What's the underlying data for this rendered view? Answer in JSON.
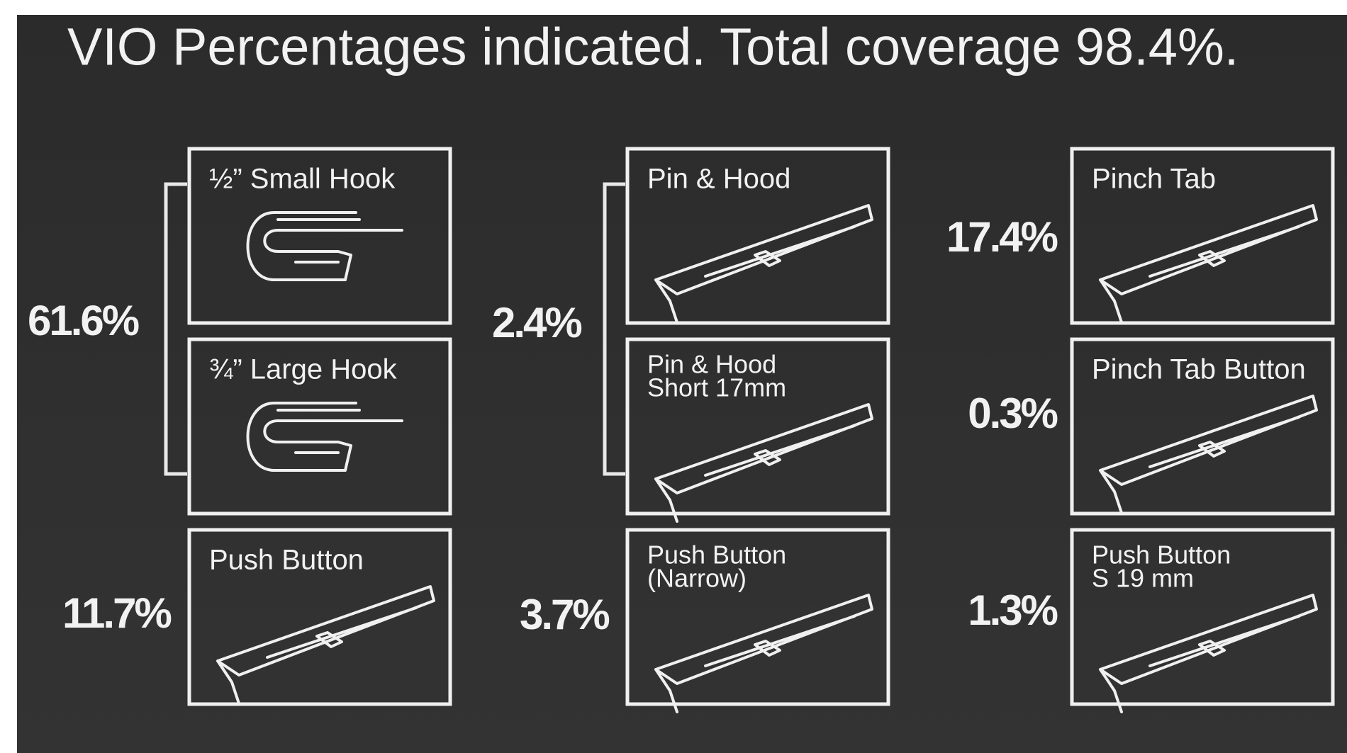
{
  "title": "VIO Percentages indicated. Total coverage 98.4%.",
  "groups": [
    {
      "percentage": "61.6%",
      "items": [
        {
          "lines": [
            "½” Small Hook"
          ]
        },
        {
          "lines": [
            "¾” Large Hook"
          ]
        }
      ]
    },
    {
      "percentage": "11.7%",
      "items": [
        {
          "lines": [
            "Push Button"
          ]
        }
      ]
    },
    {
      "percentage": "2.4%",
      "items": [
        {
          "lines": [
            "Pin & Hood"
          ]
        },
        {
          "lines": [
            "Pin & Hood",
            "Short 17mm"
          ]
        }
      ]
    },
    {
      "percentage": "3.7%",
      "items": [
        {
          "lines": [
            "Push Button",
            "(Narrow)"
          ]
        }
      ]
    },
    {
      "percentage": "17.4%",
      "items": [
        {
          "lines": [
            "Pinch Tab"
          ]
        }
      ]
    },
    {
      "percentage": "0.3%",
      "items": [
        {
          "lines": [
            "Pinch Tab Button"
          ]
        }
      ]
    },
    {
      "percentage": "1.3%",
      "items": [
        {
          "lines": [
            "Push Button",
            "S 19 mm"
          ]
        }
      ]
    }
  ]
}
